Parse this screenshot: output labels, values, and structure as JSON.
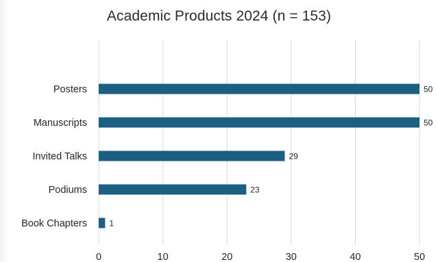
{
  "chart_data": {
    "type": "bar",
    "orientation": "horizontal",
    "title": "Academic Products 2024 (n = 153)",
    "categories": [
      "Posters",
      "Manuscripts",
      "Invited Talks",
      "Podiums",
      "Book Chapters"
    ],
    "values": [
      50,
      50,
      29,
      23,
      1
    ],
    "data_labels": [
      "50",
      "50",
      "29",
      "23",
      "1"
    ],
    "xlim": [
      0,
      50
    ],
    "x_ticks": [
      "0",
      "10",
      "20",
      "30",
      "40",
      "50"
    ],
    "grid": "vertical",
    "legend": "none",
    "bar_color": "#1b5f82",
    "gridline_color": "#d9d9d9"
  }
}
